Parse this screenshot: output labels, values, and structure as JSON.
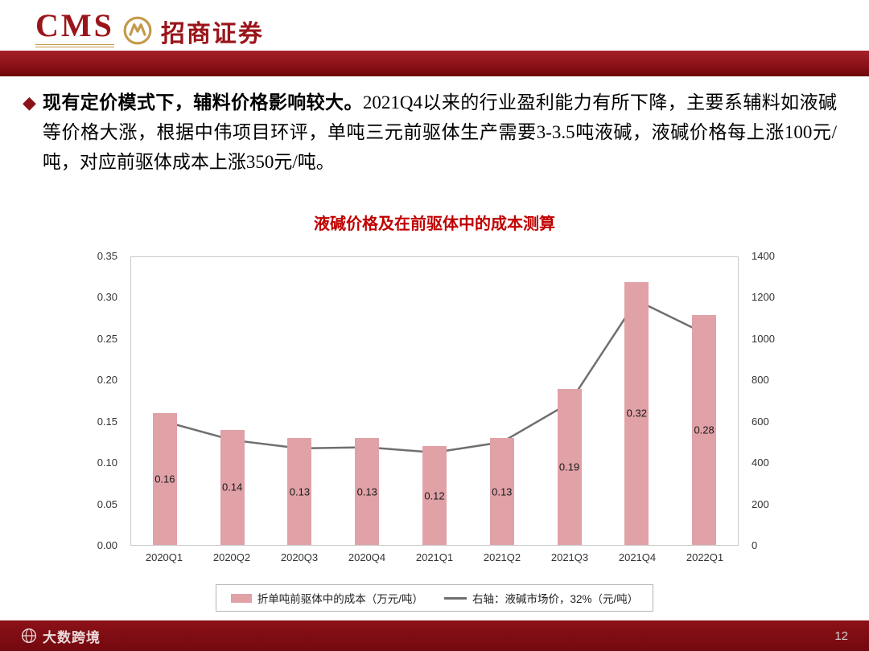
{
  "header": {
    "logo_cms": "CMS",
    "logo_brand": "招商证券"
  },
  "content": {
    "bullet": "◆",
    "lead_bold": "现有定价模式下，辅料价格影响较大。",
    "lead_rest": "2021Q4以来的行业盈利能力有所下降，主要系辅料如液碱等价格大涨，根据中伟项目环评，单吨三元前驱体生产需要3-3.5吨液碱，液碱价格每上涨100元/吨，对应前驱体成本上涨350元/吨。"
  },
  "chart_data": {
    "type": "bar",
    "combo": "bar+line",
    "title": "液碱价格及在前驱体中的成本测算",
    "title_color": "#c00000",
    "categories": [
      "2020Q1",
      "2020Q2",
      "2020Q3",
      "2020Q4",
      "2021Q1",
      "2021Q2",
      "2021Q3",
      "2021Q4",
      "2022Q1"
    ],
    "series": [
      {
        "name": "折单吨前驱体中的成本（万元/吨）",
        "type": "bar",
        "axis": "left",
        "color": "#e0a1a7",
        "values": [
          0.16,
          0.14,
          0.13,
          0.13,
          0.12,
          0.13,
          0.19,
          0.32,
          0.28
        ],
        "labels": [
          "0.16",
          "0.14",
          "0.13",
          "0.13",
          "0.12",
          "0.13",
          "0.19",
          "0.32",
          "0.28"
        ]
      },
      {
        "name": "右轴：液碱市场价，32%（元/吨）",
        "type": "line",
        "axis": "right",
        "color": "#6f6f6f",
        "values": [
          600,
          510,
          470,
          475,
          450,
          500,
          690,
          1190,
          1030
        ]
      }
    ],
    "left_axis": {
      "min": 0,
      "max": 0.35,
      "step": 0.05,
      "ticks": [
        "0.35",
        "0.30",
        "0.25",
        "0.20",
        "0.15",
        "0.10",
        "0.05",
        "0.00"
      ]
    },
    "right_axis": {
      "min": 0,
      "max": 1400,
      "step": 200,
      "ticks": [
        "1400",
        "1200",
        "1000",
        "800",
        "600",
        "400",
        "200",
        "0"
      ]
    },
    "grid": false,
    "legend_position": "bottom"
  },
  "footer": {
    "watermark": "大数跨境",
    "page_number": "12"
  }
}
